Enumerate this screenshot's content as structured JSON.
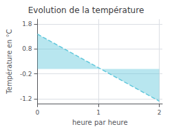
{
  "chart_data": {
    "type": "area",
    "title": "Evolution de la température",
    "xlabel": "heure par heure",
    "ylabel": "Température en °C",
    "x": [
      0,
      2
    ],
    "values": [
      1.4,
      -1.3
    ],
    "color": "#62c8dc",
    "line_style": "dashed",
    "xlim": [
      0,
      2.05
    ],
    "ylim": [
      -1.4,
      2.0
    ],
    "xticks": [
      0,
      1,
      2
    ],
    "yticks": [
      -1.2,
      -0.2,
      0.8,
      1.8
    ],
    "grid": true
  }
}
